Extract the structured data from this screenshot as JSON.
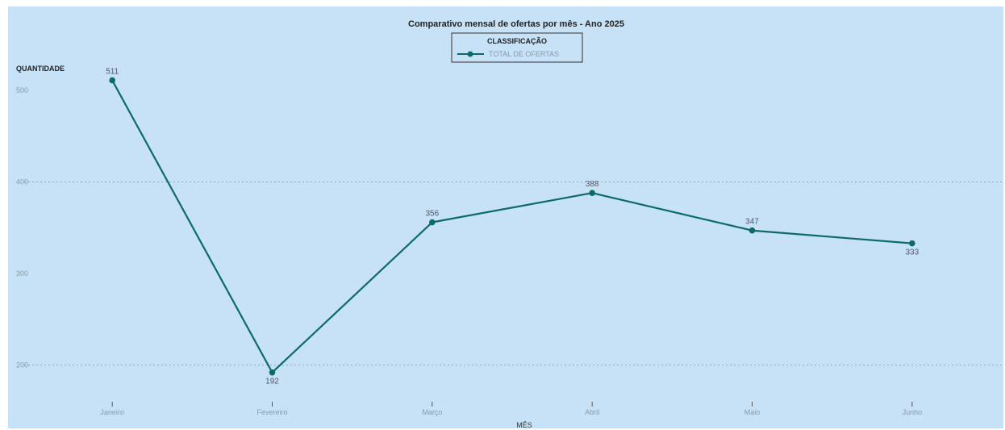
{
  "chart_data": {
    "type": "line",
    "title": "Comparativo mensal de ofertas por mês - Ano 2025",
    "legend": {
      "title": "CLASSIFICAÇÃO",
      "position": "top-center"
    },
    "ylabel": "QUANTIDADE",
    "xlabel": "MÊS",
    "categories": [
      "Janeiro",
      "Fevereiro",
      "Março",
      "Abril",
      "Maio",
      "Junho"
    ],
    "ylim": [
      160,
      530
    ],
    "yticks": [
      200,
      300,
      400,
      500
    ],
    "ytick_labels": [
      "200",
      "300",
      "400",
      "500"
    ],
    "grid": "horizontal dotted",
    "series": [
      {
        "name": "TOTAL DE OFERTAS",
        "values": [
          511,
          192,
          356,
          388,
          347,
          333
        ],
        "labels": [
          "511",
          "192",
          "356",
          "388",
          "347",
          "333"
        ],
        "color": "#0d6b66"
      }
    ]
  }
}
